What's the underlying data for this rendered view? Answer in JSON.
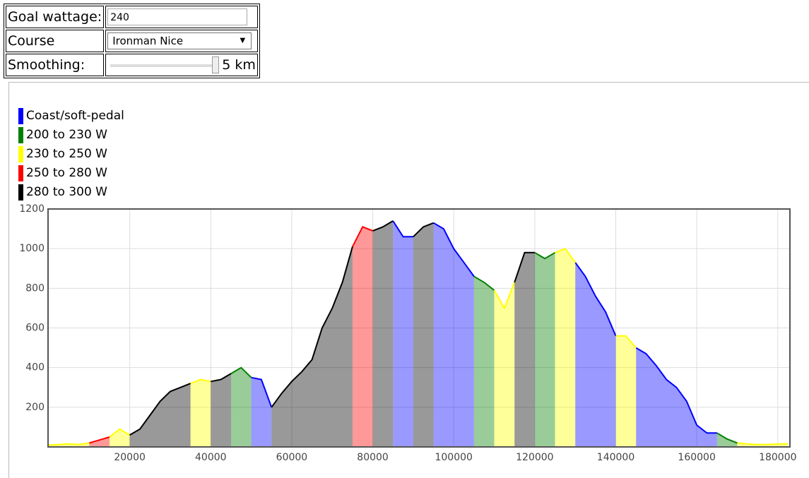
{
  "form": {
    "goal_label": "Goal wattage:",
    "goal_value": "240",
    "course_label": "Course",
    "course_value": "Ironman Nice",
    "smoothing_label": "Smoothing:",
    "smoothing_value": "5 km"
  },
  "chart_data": {
    "type": "area",
    "x": [
      0,
      2500,
      5000,
      7500,
      10000,
      12500,
      15000,
      17500,
      20000,
      22500,
      25000,
      27500,
      30000,
      32500,
      35000,
      37500,
      40000,
      42500,
      45000,
      47500,
      50000,
      52500,
      55000,
      57500,
      60000,
      62500,
      65000,
      67500,
      70000,
      72500,
      75000,
      77500,
      80000,
      82500,
      85000,
      87500,
      90000,
      92500,
      95000,
      97500,
      100000,
      102500,
      105000,
      107500,
      110000,
      112500,
      115000,
      117500,
      120000,
      122500,
      125000,
      127500,
      130000,
      132500,
      135000,
      137500,
      140000,
      142500,
      145000,
      147500,
      150000,
      152500,
      155000,
      157500,
      160000,
      162500,
      165000,
      167500,
      170000,
      172500,
      175000,
      177500,
      180000,
      182500
    ],
    "series": [
      {
        "name": "Coast/soft-pedal",
        "color": "#0000ff",
        "values": [
          null,
          null,
          null,
          null,
          null,
          null,
          null,
          null,
          null,
          null,
          null,
          null,
          null,
          null,
          null,
          null,
          null,
          null,
          null,
          null,
          350,
          340,
          200,
          null,
          null,
          null,
          null,
          null,
          null,
          null,
          null,
          null,
          null,
          null,
          1140,
          1060,
          1060,
          null,
          1130,
          1100,
          1000,
          930,
          860,
          null,
          null,
          null,
          null,
          null,
          null,
          null,
          null,
          null,
          930,
          860,
          760,
          680,
          560,
          null,
          500,
          470,
          410,
          340,
          300,
          230,
          110,
          70,
          70,
          null,
          null,
          null,
          null,
          null,
          null,
          null
        ]
      },
      {
        "name": "200 to 230 W",
        "color": "#008000",
        "values": [
          null,
          null,
          null,
          null,
          null,
          null,
          null,
          null,
          null,
          null,
          null,
          null,
          null,
          null,
          null,
          null,
          null,
          null,
          370,
          400,
          350,
          null,
          null,
          null,
          null,
          null,
          null,
          null,
          null,
          null,
          null,
          null,
          null,
          null,
          null,
          null,
          null,
          null,
          null,
          null,
          null,
          null,
          860,
          830,
          790,
          null,
          null,
          null,
          980,
          950,
          980,
          null,
          null,
          null,
          null,
          null,
          null,
          null,
          null,
          null,
          null,
          null,
          null,
          null,
          null,
          null,
          70,
          40,
          20,
          null,
          null,
          null,
          null,
          null
        ]
      },
      {
        "name": "230 to 250 W",
        "color": "#ffff00",
        "values": [
          10,
          12,
          15,
          12,
          20,
          null,
          50,
          90,
          60,
          null,
          null,
          null,
          null,
          null,
          320,
          340,
          330,
          null,
          null,
          null,
          null,
          null,
          null,
          null,
          null,
          null,
          null,
          null,
          null,
          null,
          null,
          null,
          null,
          null,
          null,
          null,
          null,
          null,
          null,
          null,
          null,
          null,
          null,
          null,
          790,
          700,
          830,
          null,
          null,
          null,
          980,
          1000,
          930,
          null,
          null,
          null,
          560,
          560,
          500,
          null,
          null,
          null,
          null,
          null,
          null,
          null,
          null,
          null,
          20,
          15,
          12,
          12,
          15,
          15
        ]
      },
      {
        "name": "250 to 280 W",
        "color": "#ff0000",
        "values": [
          null,
          null,
          null,
          null,
          20,
          35,
          50,
          null,
          null,
          null,
          null,
          null,
          null,
          null,
          null,
          null,
          null,
          null,
          null,
          null,
          null,
          null,
          null,
          null,
          null,
          null,
          null,
          null,
          null,
          null,
          1010,
          1110,
          1090,
          null,
          null,
          null,
          null,
          null,
          null,
          null,
          null,
          null,
          null,
          null,
          null,
          null,
          null,
          null,
          null,
          null,
          null,
          null,
          null,
          null,
          null,
          null,
          null,
          null,
          null,
          null,
          null,
          null,
          null,
          null,
          null,
          null,
          null,
          null,
          null,
          null,
          null,
          null,
          null,
          null
        ]
      },
      {
        "name": "280 to 300 W",
        "color": "#000000",
        "values": [
          null,
          null,
          null,
          null,
          null,
          null,
          null,
          null,
          60,
          90,
          160,
          230,
          280,
          300,
          320,
          null,
          330,
          340,
          370,
          null,
          null,
          null,
          200,
          270,
          330,
          380,
          440,
          600,
          700,
          830,
          1010,
          null,
          1090,
          1110,
          1140,
          null,
          1060,
          1110,
          1130,
          null,
          null,
          null,
          null,
          null,
          null,
          null,
          830,
          980,
          980,
          null,
          null,
          null,
          null,
          null,
          null,
          null,
          null,
          null,
          null,
          null,
          null,
          null,
          null,
          null,
          null,
          null,
          null,
          null,
          null,
          null,
          null,
          null,
          null,
          null
        ]
      }
    ],
    "xlim": [
      0,
      183000
    ],
    "ylim": [
      0,
      1200
    ],
    "xticks": [
      20000,
      40000,
      60000,
      80000,
      100000,
      120000,
      140000,
      160000,
      180000
    ],
    "yticks": [
      200,
      400,
      600,
      800,
      1000,
      1200
    ],
    "grid": true
  }
}
